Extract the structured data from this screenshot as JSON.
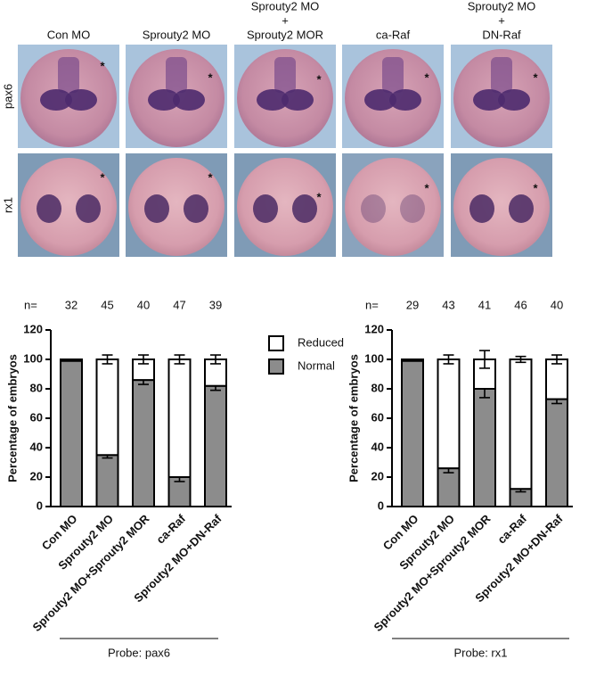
{
  "image_panel": {
    "columns": [
      [
        "Con MO"
      ],
      [
        "Sprouty2 MO"
      ],
      [
        "Sprouty2 MO",
        "+",
        "Sprouty2 MOR"
      ],
      [
        "ca-Raf"
      ],
      [
        "Sprouty2 MO",
        "+",
        "DN-Raf"
      ]
    ],
    "rows": [
      "pax6",
      "rx1"
    ],
    "marker": "*"
  },
  "chart_data": [
    {
      "type": "stacked_bar",
      "n_label": "n=",
      "n": [
        32,
        45,
        40,
        47,
        39
      ],
      "categories": [
        "Con MO",
        "Sprouty2 MO",
        "Sprouty2 MO+Sprouty2 MOR",
        "ca-Raf",
        "Sprouty2 MO+DN-Raf"
      ],
      "series": [
        {
          "name": "Normal",
          "color": "#8c8c8c",
          "values": [
            99,
            35,
            86,
            20,
            82
          ],
          "errors": [
            0,
            2,
            3,
            3,
            3
          ]
        },
        {
          "name": "Reduced",
          "color": "#ffffff",
          "values": [
            1,
            65,
            14,
            80,
            18
          ],
          "errors": [
            0,
            3,
            3,
            3,
            3
          ]
        }
      ],
      "ylabel": "Percentage of embryos",
      "xlabel": "Probe: pax6",
      "ylim": [
        0,
        120
      ],
      "yticks": [
        0,
        20,
        40,
        60,
        80,
        100,
        120
      ],
      "legend": true
    },
    {
      "type": "stacked_bar",
      "n_label": "n=",
      "n": [
        29,
        43,
        41,
        46,
        40
      ],
      "categories": [
        "Con MO",
        "Sprouty2 MO",
        "Sprouty2 MO+Sprouty2 MOR",
        "ca-Raf",
        "Sprouty2 MO+DN-Raf"
      ],
      "series": [
        {
          "name": "Normal",
          "color": "#8c8c8c",
          "values": [
            99,
            26,
            80,
            12,
            73
          ],
          "errors": [
            0,
            3,
            6,
            2,
            3
          ]
        },
        {
          "name": "Reduced",
          "color": "#ffffff",
          "values": [
            1,
            74,
            20,
            88,
            27
          ],
          "errors": [
            0,
            3,
            6,
            2,
            3
          ]
        }
      ],
      "ylabel": "Percentage of embryos",
      "xlabel": "Probe: rx1",
      "ylim": [
        0,
        120
      ],
      "yticks": [
        0,
        20,
        40,
        60,
        80,
        100,
        120
      ],
      "legend": false
    }
  ]
}
